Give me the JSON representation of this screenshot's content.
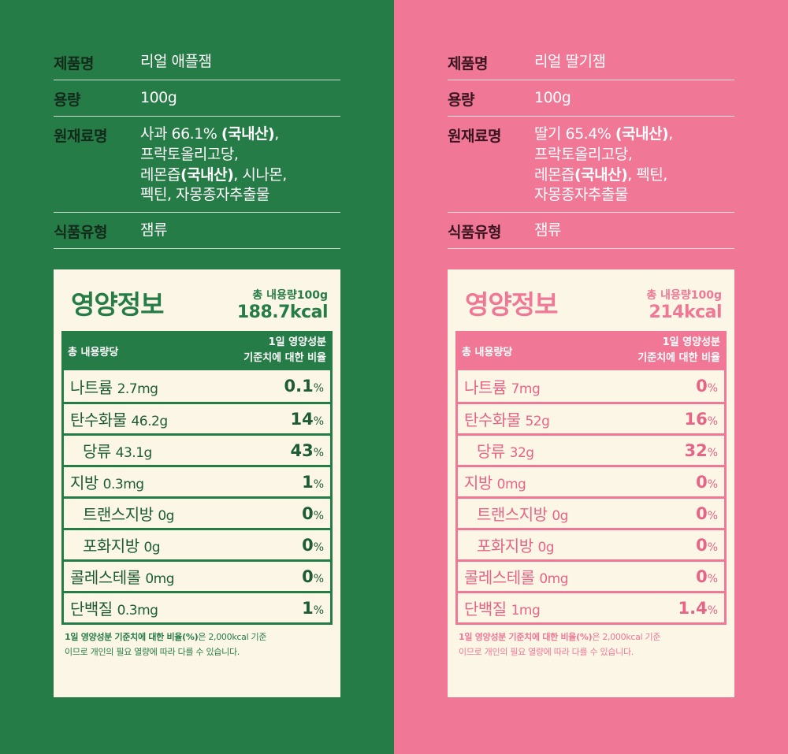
{
  "colors": {
    "apple_bg": "#267c46",
    "strawberry_bg": "#f07896",
    "card_bg": "#fcf6e6"
  },
  "labels": {
    "product_name": "제품명",
    "volume": "용량",
    "ingredients": "원재료명",
    "food_type": "식품유형",
    "nutrition_title": "영양정보",
    "basis": "총 내용량100g",
    "per_total": "총 내용량당",
    "dv_line1": "1일 영양성분",
    "dv_line2": "기준치에 대한 비율",
    "note_bold": "1일 영양성분 기준치에 대한 비율(%)",
    "note_rest1": "은 2,000kcal 기준",
    "note_line2": "이므로 개인의 필요 열량에 따라 다를 수 있습니다.",
    "pct_unit": "%"
  },
  "apple": {
    "product_name": "리얼 애플잼",
    "volume": "100g",
    "ingredients": {
      "l1a": "사과 66.1% ",
      "l1b": "(국내산)",
      "l1c": ",",
      "l2": "프락토올리고당,",
      "l3a": "레몬즙",
      "l3b": "(국내산)",
      "l3c": ", 시나몬,",
      "l4": "펙틴, 자몽종자추출물"
    },
    "food_type": "잼류",
    "kcal": "188.7kcal",
    "nutrients": [
      {
        "name": "나트륨",
        "amount": "2.7mg",
        "pct": "0.1"
      },
      {
        "name": "탄수화물",
        "amount": "46.2g",
        "pct": "14"
      },
      {
        "name": "당류",
        "amount": "43.1g",
        "pct": "43"
      },
      {
        "name": "지방",
        "amount": "0.3mg",
        "pct": "1"
      },
      {
        "name": "트랜스지방",
        "amount": "0g",
        "pct": "0"
      },
      {
        "name": "포화지방",
        "amount": "0g",
        "pct": "0"
      },
      {
        "name": "콜레스테롤",
        "amount": "0mg",
        "pct": "0"
      },
      {
        "name": "단백질",
        "amount": "0.3mg",
        "pct": "1"
      }
    ]
  },
  "strawberry": {
    "product_name": "리얼 딸기잼",
    "volume": "100g",
    "ingredients": {
      "l1a": "딸기 65.4% ",
      "l1b": "(국내산)",
      "l1c": ",",
      "l2": "프락토올리고당,",
      "l3a": "레몬즙",
      "l3b": "(국내산)",
      "l3c": ", 펙틴,",
      "l4": "자몽종자추출물"
    },
    "food_type": "잼류",
    "kcal": "214kcal",
    "nutrients": [
      {
        "name": "나트륨",
        "amount": "7mg",
        "pct": "0"
      },
      {
        "name": "탄수화물",
        "amount": "52g",
        "pct": "16"
      },
      {
        "name": "당류",
        "amount": "32g",
        "pct": "32"
      },
      {
        "name": "지방",
        "amount": "0mg",
        "pct": "0"
      },
      {
        "name": "트랜스지방",
        "amount": "0g",
        "pct": "0"
      },
      {
        "name": "포화지방",
        "amount": "0g",
        "pct": "0"
      },
      {
        "name": "콜레스테롤",
        "amount": "0mg",
        "pct": "0"
      },
      {
        "name": "단백질",
        "amount": "1mg",
        "pct": "1.4"
      }
    ]
  }
}
